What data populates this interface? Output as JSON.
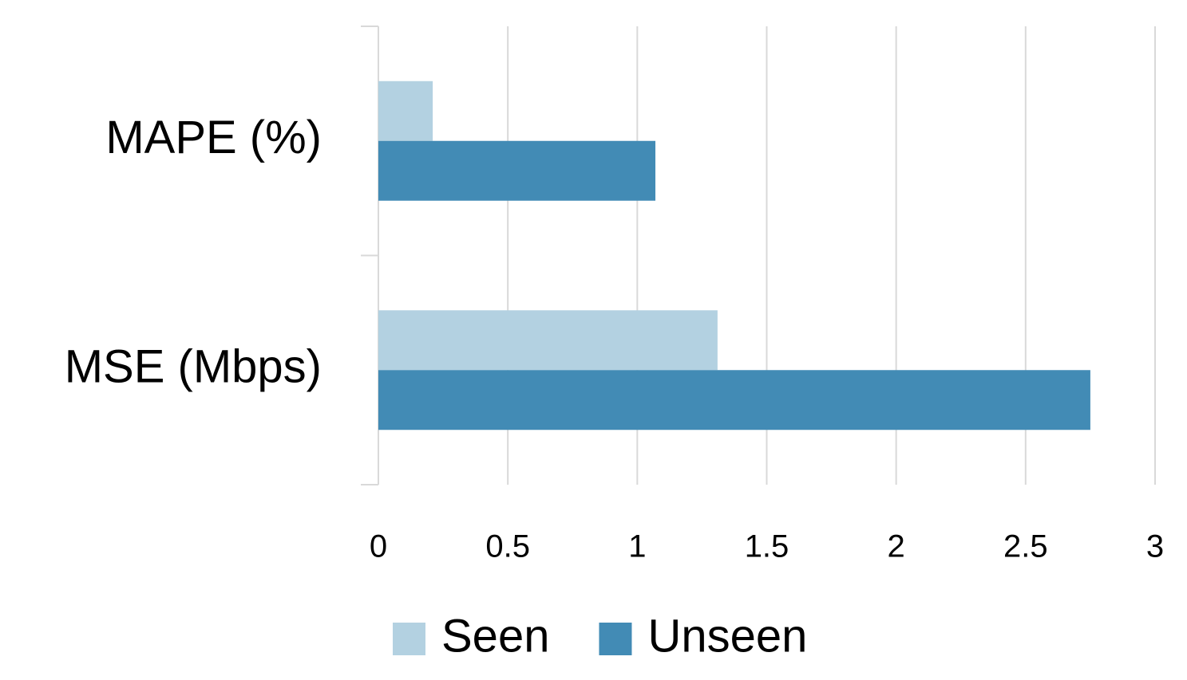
{
  "chart_data": {
    "type": "hbar",
    "categories": [
      "MAPE (%)",
      "MSE (Mbps)"
    ],
    "series": [
      {
        "name": "Seen",
        "color": "#b3d1e1",
        "values": [
          0.21,
          1.31
        ]
      },
      {
        "name": "Unseen",
        "color": "#428bb5",
        "values": [
          1.07,
          2.75
        ]
      }
    ],
    "xlim": [
      0,
      3
    ],
    "xticks": [
      0,
      0.5,
      1,
      1.5,
      2,
      2.5,
      3
    ],
    "grid": true,
    "legend": "bottom"
  }
}
